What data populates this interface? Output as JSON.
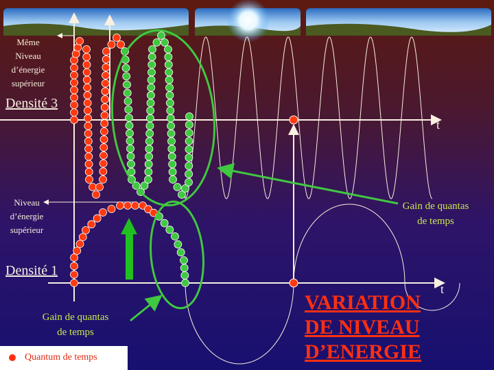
{
  "labels": {
    "top_level": [
      "Même",
      "Niveau",
      "d’énergie",
      "supérieur"
    ],
    "density3": "Densité 3",
    "mid_level": [
      "Niveau",
      "d’énergie",
      "supérieur"
    ],
    "density1": "Densité 1",
    "t_axis": "t"
  },
  "gain_right": [
    "Gain de quantas",
    "de temps"
  ],
  "gain_left": [
    "Gain de quantas",
    "de temps"
  ],
  "title": [
    "VARIATION",
    "DE NIVEAU",
    "D’ENERGIE"
  ],
  "legend": {
    "label": "Quantum de temps",
    "icon": "red-dot-icon"
  },
  "colors": {
    "quantum_red": "#ff3a10",
    "gain_green": "#40c840",
    "title_red": "#ff3010",
    "gain_text": "#c8e848"
  }
}
